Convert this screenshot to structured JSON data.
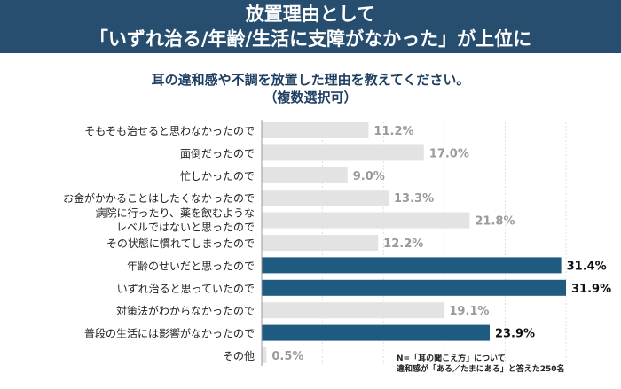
{
  "header": {
    "title_line1": "放置理由として",
    "title_line2": "「いずれ治る/年齢/生活に支障がなかった」が上位に"
  },
  "question": {
    "line1": "耳の違和感や不調を放置した理由を教えてください。",
    "line2": "（複数選択可）"
  },
  "note": {
    "line1": "N=「耳の聞こえ方」について",
    "line2": "違和感が「ある／たまにある」と答えた250名"
  },
  "colors": {
    "highlight": "#1f5a80",
    "normal": "#e3e3e3",
    "highlight_label": "#111111",
    "normal_label": "#9a9a9a"
  },
  "chart_data": {
    "type": "bar",
    "orientation": "horizontal",
    "unit": "%",
    "categories": [
      [
        "そもそも治せると思わなかったので"
      ],
      [
        "面倒だったので"
      ],
      [
        "忙しかったので"
      ],
      [
        "お金がかかることはしたくなかったので"
      ],
      [
        "病院に行ったり、薬を飲むような",
        "レベルではないと思ったので"
      ],
      [
        "その状態に慣れてしまったので"
      ],
      [
        "年齢のせいだと思ったので"
      ],
      [
        "いずれ治ると思っていたので"
      ],
      [
        "対策法がわからなかったので"
      ],
      [
        "普段の生活には影響がなかったので"
      ],
      [
        "その他"
      ]
    ],
    "values": [
      11.2,
      17.0,
      9.0,
      13.3,
      21.8,
      12.2,
      31.4,
      31.9,
      19.1,
      23.9,
      0.5
    ],
    "value_labels": [
      "11.2%",
      "17.0%",
      "9.0%",
      "13.3%",
      "21.8%",
      "12.2%",
      "31.4%",
      "31.9%",
      "19.1%",
      "23.9%",
      "0.5%"
    ],
    "highlighted": [
      false,
      false,
      false,
      false,
      false,
      false,
      true,
      true,
      false,
      true,
      false
    ],
    "xlim": [
      0,
      31.9
    ]
  }
}
